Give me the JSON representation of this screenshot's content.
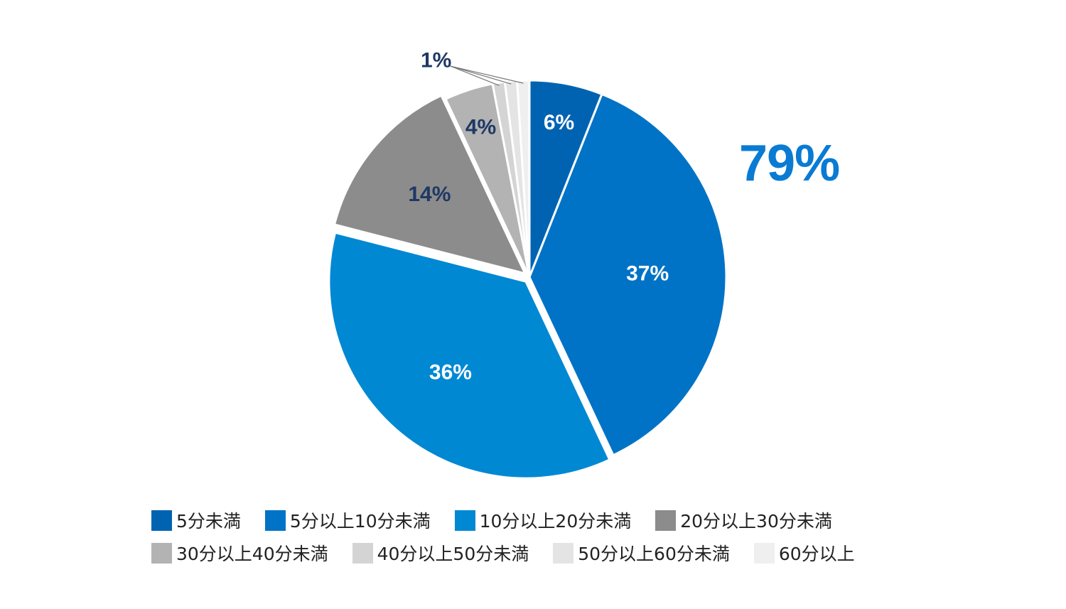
{
  "highlight": {
    "text": "79%",
    "color": "#0A7BD3"
  },
  "chart_data": {
    "type": "pie",
    "start": "top",
    "direction": "clockwise",
    "categories": [
      "5分未満",
      "5分以上10分未満",
      "10分以上20分未満",
      "20分以上30分未満",
      "30分以上40分未満",
      "40分以上50分未満",
      "50分以上60分未満",
      "60分以上"
    ],
    "values": [
      6,
      37,
      36,
      14,
      4,
      1,
      1,
      1
    ],
    "data_labels": [
      "6%",
      "37%",
      "36%",
      "14%",
      "4%",
      "1%",
      "",
      ""
    ],
    "colors": [
      "#0063B2",
      "#0073C6",
      "#0088D3",
      "#8C8C8C",
      "#B3B3B3",
      "#D4D4D4",
      "#E4E4E4",
      "#EFEFEF"
    ],
    "label_colors": [
      "#ffffff",
      "#ffffff",
      "#ffffff",
      "#1F3864",
      "#1F3864",
      "#1F3864",
      "#1F3864",
      "#1F3864"
    ],
    "exploded": [
      "36%",
      "14%"
    ],
    "legend_position": "bottom"
  }
}
